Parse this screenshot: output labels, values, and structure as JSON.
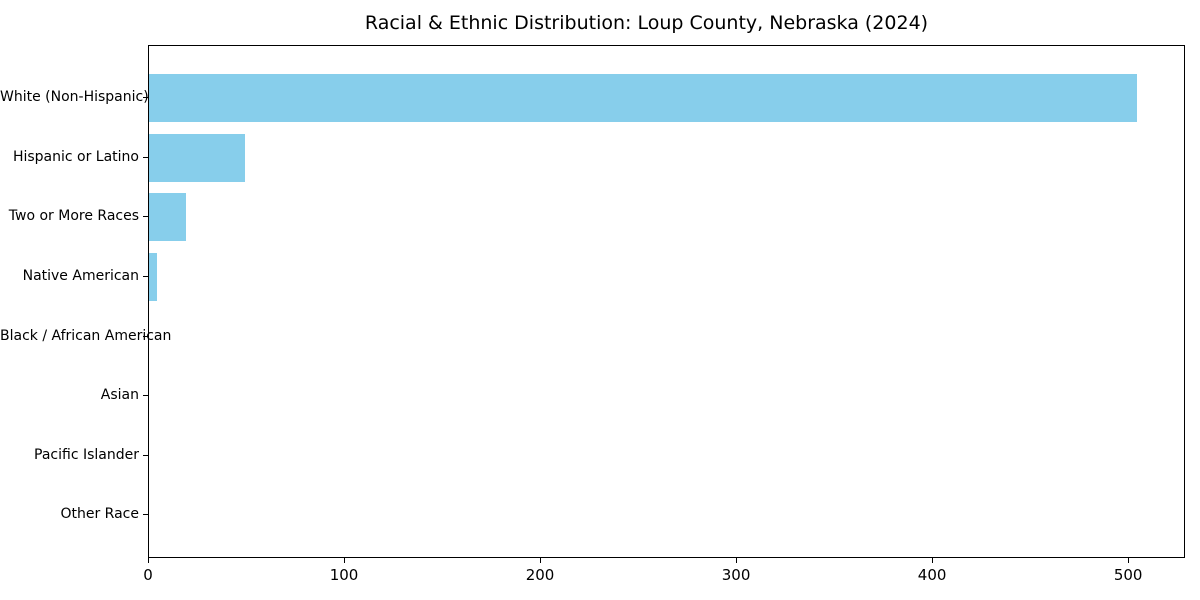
{
  "chart_data": {
    "type": "bar",
    "orientation": "horizontal",
    "title": "Racial & Ethnic Distribution: Loup County, Nebraska (2024)",
    "categories": [
      "White (Non-Hispanic)",
      "Hispanic or Latino",
      "Two or More Races",
      "Native American",
      "Black / African American",
      "Asian",
      "Pacific Islander",
      "Other Race"
    ],
    "values": [
      504,
      49,
      19,
      4,
      0,
      0,
      0,
      0
    ],
    "xlabel": "",
    "ylabel": "",
    "xlim": [
      0,
      529
    ],
    "x_ticks": [
      0,
      100,
      200,
      300,
      400,
      500
    ],
    "bar_color": "#87CEEB",
    "axis_color": "#000000",
    "grid": false,
    "legend": null
  }
}
